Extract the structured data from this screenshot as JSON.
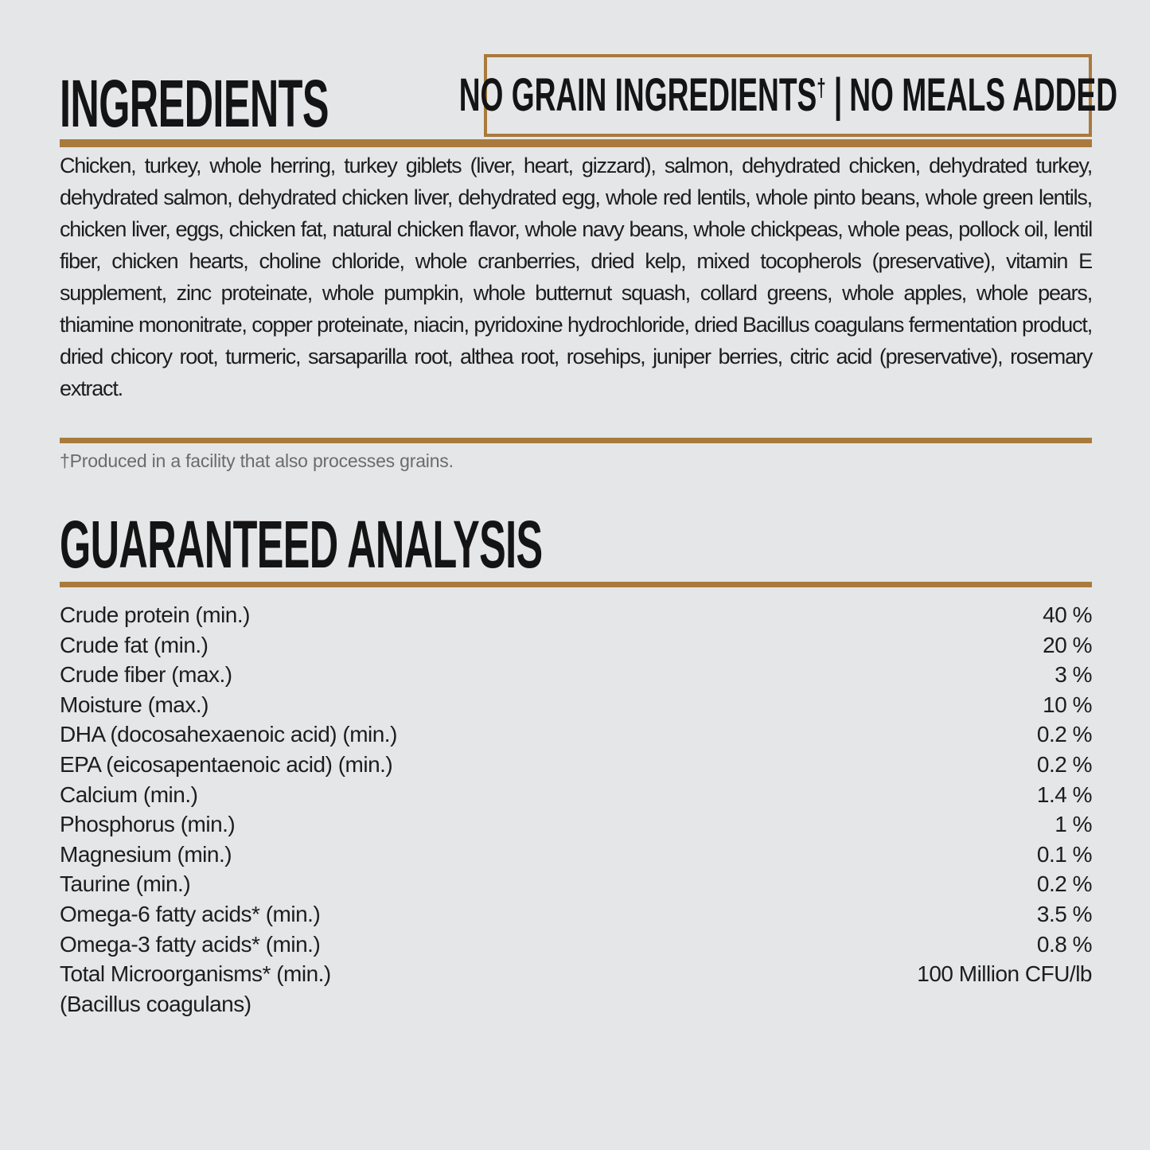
{
  "page": {
    "background_color": "#e5e6e8",
    "accent_color": "#a87a3c",
    "text_color": "#1d1d1d",
    "muted_color": "#6b6b6b"
  },
  "ingredients_section": {
    "title": "INGREDIENTS",
    "badge": {
      "no_grain": "NO GRAIN INGREDIENTS",
      "dagger": "†",
      "divider": "|",
      "no_meals": "NO MEALS ADDED"
    },
    "body": "Chicken, turkey, whole herring, turkey giblets (liver, heart, gizzard), salmon, dehydrated chicken, dehydrated turkey, dehydrated salmon, dehydrated chicken liver, dehydrated egg, whole red lentils, whole pinto beans, whole green lentils, chicken liver, eggs, chicken fat, natural chicken flavor, whole navy beans, whole chickpeas, whole peas, pollock oil, lentil fiber, chicken hearts, choline chloride, whole cranberries, dried kelp, mixed tocopherols (preservative), vitamin E supplement, zinc proteinate, whole pumpkin, whole butternut squash, collard greens, whole apples, whole pears, thiamine mononitrate, copper proteinate, niacin, pyridoxine hydrochloride, dried Bacillus coagulans fermentation product, dried chicory root, turmeric, sarsaparilla root, althea root, rosehips, juniper berries, citric acid (preservative), rosemary extract.",
    "footnote": "†Produced in a facility that also processes grains."
  },
  "analysis_section": {
    "title": "GUARANTEED ANALYSIS",
    "rows": [
      {
        "label": "Crude protein (min.)",
        "value": "40 %"
      },
      {
        "label": "Crude fat (min.)",
        "value": "20 %"
      },
      {
        "label": "Crude fiber (max.)",
        "value": "3 %"
      },
      {
        "label": "Moisture (max.)",
        "value": "10 %"
      },
      {
        "label": "DHA (docosahexaenoic acid) (min.)",
        "value": "0.2 %"
      },
      {
        "label": "EPA (eicosapentaenoic acid) (min.)",
        "value": "0.2 %"
      },
      {
        "label": "Calcium (min.)",
        "value": "1.4 %"
      },
      {
        "label": "Phosphorus (min.)",
        "value": "1 %"
      },
      {
        "label": "Magnesium (min.)",
        "value": "0.1 %"
      },
      {
        "label": "Taurine (min.)",
        "value": "0.2 %"
      },
      {
        "label": "Omega-6 fatty acids* (min.)",
        "value": "3.5 %"
      },
      {
        "label": "Omega-3 fatty acids* (min.)",
        "value": "0.8 %"
      },
      {
        "label": "Total Microorganisms* (min.)",
        "value": "100 Million CFU/lb"
      },
      {
        "label": "(Bacillus coagulans)",
        "value": ""
      }
    ]
  }
}
